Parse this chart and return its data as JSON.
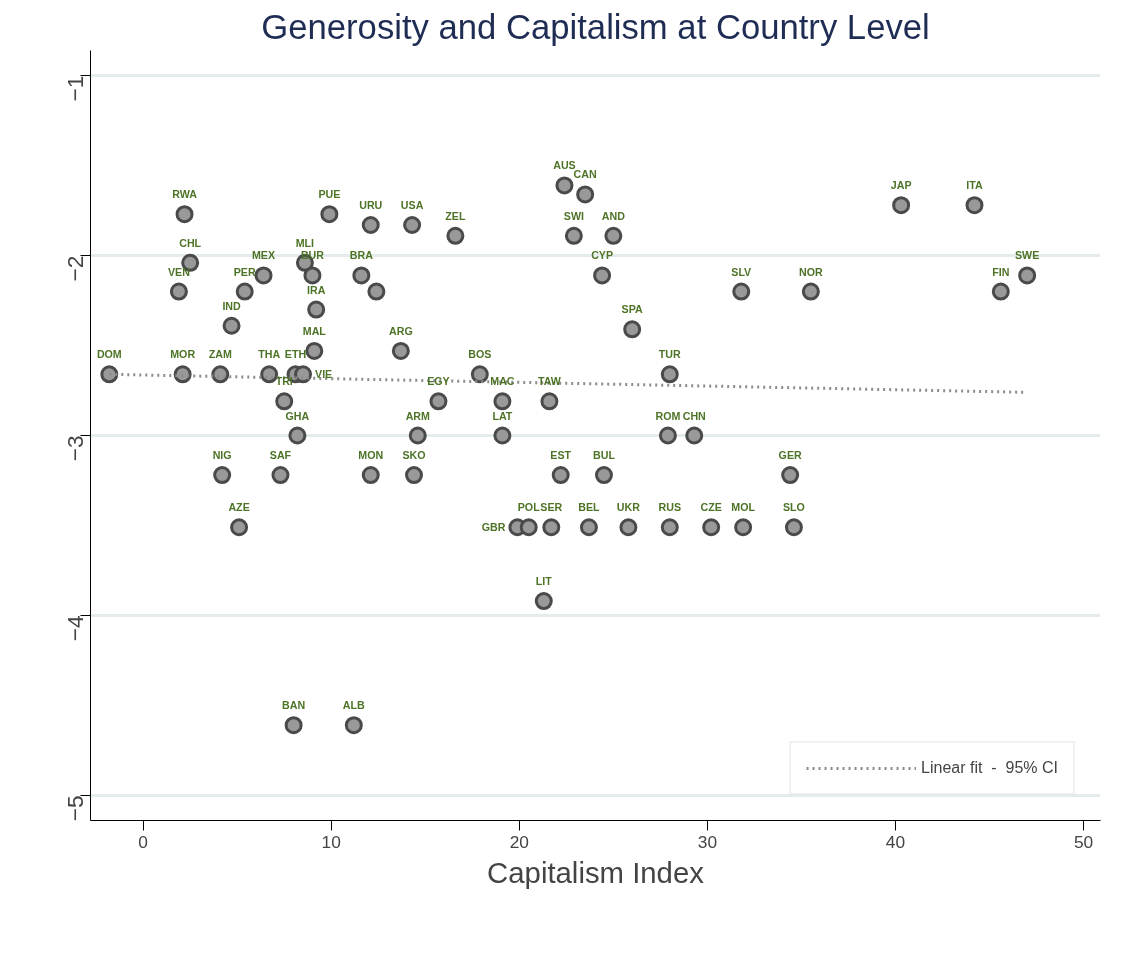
{
  "chart_data": {
    "type": "scatter",
    "title": "Generosity and Capitalism at Country Level",
    "xlabel": "Capitalism Index",
    "xlim": [
      -2.8,
      50.9
    ],
    "ylim": [
      -5.14,
      -0.86
    ],
    "xticks": [
      0,
      10,
      20,
      30,
      40,
      50
    ],
    "yticks": [
      -1,
      -2,
      -3,
      -4,
      -5
    ],
    "grid": "y",
    "legend": "bottom right",
    "series": [
      {
        "color": "#999999",
        "marker": "circle",
        "x": [
          -1.8,
          2.2,
          2.5,
          1.9,
          6.4,
          5.4,
          4.7,
          2.1,
          4.1,
          6.7,
          8.1,
          8.5,
          7.5,
          8.2,
          4.2,
          7.3,
          5.1,
          9.9,
          8.6,
          9.0,
          9.2,
          9.1,
          12.1,
          14.3,
          16.6,
          11.6,
          12.4,
          13.7,
          15.7,
          14.6,
          12.1,
          14.4,
          17.9,
          19.1,
          19.1,
          19.9,
          20.5,
          21.7,
          23.7,
          25.8,
          28.0,
          30.2,
          31.9,
          34.6,
          21.3,
          22.4,
          23.5,
          22.9,
          25.0,
          24.4,
          26.0,
          21.6,
          22.2,
          24.5,
          28.0,
          27.9,
          29.3,
          31.8,
          35.5,
          34.4,
          40.3,
          44.2,
          45.6,
          47.0,
          8.0,
          11.2
        ],
        "values": [
          -2.66,
          -1.77,
          -2.04,
          -2.2,
          -2.11,
          -2.2,
          -2.39,
          -2.66,
          -2.66,
          -2.66,
          -2.66,
          -2.66,
          -2.81,
          -3.0,
          -3.22,
          -3.22,
          -3.51,
          -1.77,
          -2.04,
          -2.11,
          -2.3,
          -2.53,
          -1.83,
          -1.83,
          -1.89,
          -2.11,
          -2.2,
          -2.53,
          -2.81,
          -3.0,
          -3.22,
          -3.22,
          -2.66,
          -2.81,
          -3.0,
          -3.51,
          -3.51,
          -3.51,
          -3.51,
          -3.51,
          -3.51,
          -3.51,
          -3.51,
          -3.51,
          -3.92,
          -1.61,
          -1.66,
          -1.89,
          -1.89,
          -2.11,
          -2.41,
          -2.81,
          -3.22,
          -3.22,
          -2.66,
          -3.0,
          -3.0,
          -2.2,
          -2.2,
          -3.22,
          -1.72,
          -1.72,
          -2.2,
          -2.11,
          -4.61,
          -4.61
        ],
        "value_labels": [
          "DOM",
          "RWA",
          "CHL",
          "VEN",
          "MEX",
          "PER",
          "IND",
          "MOR",
          "ZAM",
          "THA",
          "ETH",
          "VIE",
          "TRI",
          "GHA",
          "NIG",
          "SAF",
          "AZE",
          "PUE",
          "MLI",
          "BUR",
          "IRA",
          "MAL",
          "URU",
          "USA",
          "ZEL",
          "BRA",
          null,
          "ARG",
          "EGY",
          "ARM",
          "MON",
          "SKO",
          "BOS",
          "MAC",
          "LAT",
          "GBR",
          "POL",
          "SER",
          "BEL",
          "UKR",
          "RUS",
          "CZE",
          "MOL",
          "SLO",
          "LIT",
          "AUS",
          "CAN",
          "SWI",
          "AND",
          "CYP",
          "SPA",
          "TAW",
          "EST",
          "BUL",
          "TUR",
          "ROM",
          "CHN",
          "SLV",
          "NOR",
          "GER",
          "JAP",
          "ITA",
          "FIN",
          "SWE",
          "BAN",
          "ALB"
        ]
      },
      {
        "type": "line",
        "name": "Linear fit  -  95% CI",
        "color": "#8c8c8c",
        "line_style": "dotted",
        "marker": "none",
        "x": [
          -1.8,
          47.0
        ],
        "values": [
          -2.66,
          -2.76
        ]
      }
    ]
  }
}
